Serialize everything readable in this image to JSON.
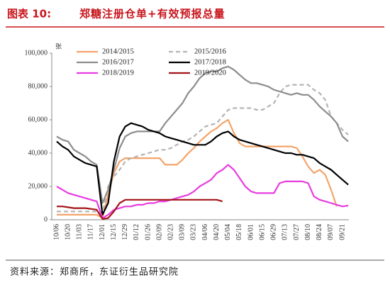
{
  "chart_data": {
    "type": "line",
    "label": "图表 10:",
    "title": "郑糖注册仓单+有效预报总量",
    "y_label": "张",
    "source": "资料来源：郑商所，东证衍生品研究院",
    "categories": [
      "10/06",
      null,
      "10/20",
      null,
      "11/03",
      null,
      "11/17",
      null,
      "12/01",
      null,
      "12/15",
      null,
      "12/29",
      null,
      "01/12",
      null,
      "01/26",
      null,
      "02/09",
      null,
      "02/23",
      null,
      "03/09",
      null,
      "03/23",
      null,
      "04/06",
      null,
      "04/20",
      null,
      "05/04",
      null,
      "05/18",
      null,
      "06/01",
      null,
      "06/15",
      null,
      "06/29",
      null,
      "07/13",
      null,
      "07/27",
      null,
      "08/10",
      null,
      "08/24",
      null,
      "09/07",
      null,
      "09/21",
      null
    ],
    "ylim": [
      0,
      100000
    ],
    "yticks": [
      0,
      {
        "value": 20000,
        "label": "20,000"
      },
      {
        "value": 40000,
        "label": "40,000"
      },
      {
        "value": 60000,
        "label": "60,000"
      },
      {
        "value": 80000,
        "label": "80,000"
      },
      {
        "value": 100000,
        "label": "100,000"
      }
    ],
    "series": [
      {
        "name": "2014/2015",
        "color": "#f4a46a",
        "dashed": false,
        "values": [
          3000,
          3000,
          3000,
          3000,
          3000,
          3000,
          3000,
          3000,
          1000,
          15000,
          28000,
          35000,
          37000,
          37000,
          37000,
          37000,
          37000,
          37000,
          37000,
          33000,
          33000,
          33000,
          36000,
          40000,
          43000,
          47000,
          50000,
          53000,
          55000,
          58000,
          60000,
          52000,
          46000,
          44000,
          44000,
          44000,
          44000,
          44000,
          44000,
          44000,
          44000,
          44000,
          43000,
          38000,
          32000,
          28000,
          30000,
          27000,
          18000,
          8000,
          null,
          null
        ]
      },
      {
        "name": "2015/2016",
        "color": "#b4b4b4",
        "dashed": true,
        "values": [
          5000,
          5000,
          5000,
          5000,
          5000,
          5000,
          5000,
          5000,
          4000,
          20000,
          26000,
          30000,
          35000,
          37000,
          38000,
          39000,
          40000,
          41000,
          42000,
          42000,
          43000,
          45000,
          47000,
          48000,
          50000,
          53000,
          56000,
          57000,
          58000,
          62000,
          66000,
          67000,
          67000,
          67000,
          67000,
          66000,
          66000,
          68000,
          70000,
          76000,
          80000,
          81000,
          81000,
          81000,
          81000,
          78000,
          76000,
          72000,
          62000,
          58000,
          54000,
          51000
        ]
      },
      {
        "name": "2016/2017",
        "color": "#8c8c8c",
        "dashed": false,
        "values": [
          50000,
          48000,
          47000,
          42000,
          40000,
          38000,
          35000,
          33000,
          10000,
          18000,
          30000,
          43000,
          50000,
          52000,
          53000,
          53000,
          53000,
          53000,
          53000,
          58000,
          62000,
          66000,
          70000,
          76000,
          80000,
          85000,
          88000,
          89000,
          89000,
          91000,
          92000,
          90000,
          87000,
          84000,
          82000,
          82000,
          81000,
          80000,
          78000,
          77000,
          76000,
          75000,
          76000,
          75000,
          75000,
          72000,
          68000,
          65000,
          62000,
          58000,
          50000,
          47000
        ]
      },
      {
        "name": "2017/2018",
        "color": "#000000",
        "dashed": false,
        "values": [
          47000,
          44000,
          42000,
          38000,
          36000,
          34000,
          33000,
          32000,
          3000,
          10000,
          35000,
          50000,
          56000,
          58000,
          57000,
          56000,
          54000,
          53000,
          52000,
          50000,
          49000,
          48000,
          47000,
          46000,
          45000,
          45000,
          45000,
          47000,
          50000,
          52000,
          53000,
          50000,
          48000,
          47000,
          46000,
          45000,
          44000,
          43000,
          42000,
          41000,
          40000,
          40000,
          39000,
          39000,
          38000,
          37000,
          34000,
          32000,
          30000,
          27000,
          24000,
          21000
        ]
      },
      {
        "name": "2018/2019",
        "color": "#e83ce0",
        "dashed": false,
        "values": [
          20000,
          18000,
          16000,
          15000,
          14000,
          13000,
          12000,
          11000,
          1000,
          3000,
          6000,
          7000,
          8000,
          8000,
          9000,
          9000,
          10000,
          10000,
          11000,
          11000,
          12000,
          13000,
          14000,
          15000,
          17000,
          20000,
          22000,
          24000,
          28000,
          30000,
          33000,
          30000,
          25000,
          20000,
          17000,
          16000,
          16000,
          16000,
          16000,
          22000,
          23000,
          23000,
          23000,
          23000,
          22000,
          14000,
          12000,
          11000,
          10000,
          9000,
          8000,
          8500
        ]
      },
      {
        "name": "2019/2020",
        "color": "#a3141a",
        "dashed": false,
        "values": [
          8000,
          8000,
          7500,
          7000,
          7000,
          7000,
          6500,
          6000,
          500,
          1000,
          5000,
          10000,
          12000,
          12000,
          12000,
          12000,
          12000,
          12000,
          12000,
          12000,
          12000,
          12000,
          12000,
          12000,
          12000,
          12000,
          12000,
          12000,
          12000,
          11000,
          null,
          null,
          null,
          null,
          null,
          null,
          null,
          null,
          null,
          null,
          null,
          null,
          null,
          null,
          null,
          null,
          null,
          null,
          null,
          null,
          null,
          null
        ]
      }
    ]
  }
}
